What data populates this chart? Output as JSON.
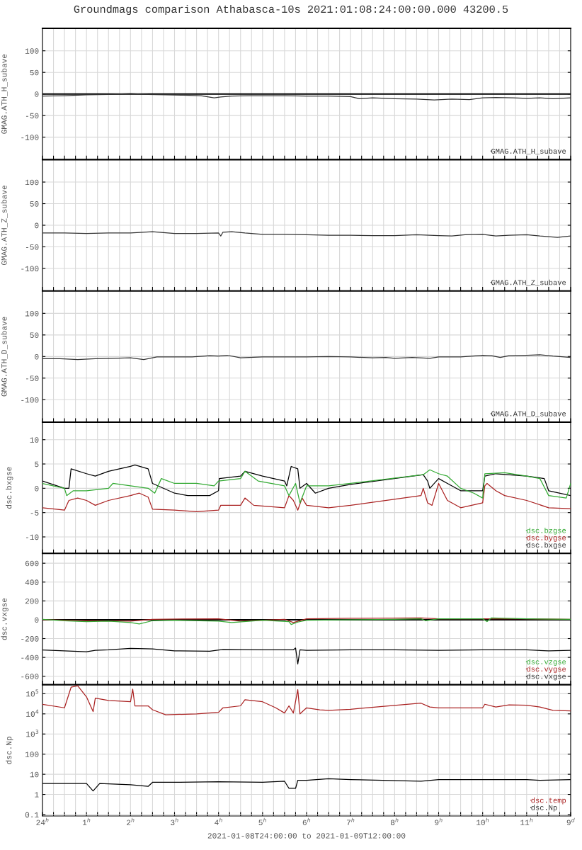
{
  "chart_data": [
    {
      "type": "line",
      "title": "Groundmags comparison Athabasca-10s 2021:01:08:24:00:00.000 43200.5",
      "ylabel": "GMAG.ATH_H_subave",
      "grid": true,
      "legend": "bottom right",
      "tick_labels": "y",
      "xlim": [
        "2021-01-09T00:00",
        "2021-01-09T12:00"
      ],
      "xticks": [
        "2021-01-09T00:00",
        "2021-01-09T00:15",
        "2021-01-09T00:30",
        "2021-01-09T00:45",
        "2021-01-09T01:00",
        "2021-01-09T01:15",
        "2021-01-09T01:30",
        "2021-01-09T01:45",
        "2021-01-09T02:00",
        "2021-01-09T02:15",
        "2021-01-09T02:30",
        "2021-01-09T02:45",
        "2021-01-09T03:00",
        "2021-01-09T03:15",
        "2021-01-09T03:30",
        "2021-01-09T03:45",
        "2021-01-09T04:00",
        "2021-01-09T04:15",
        "2021-01-09T04:30",
        "2021-01-09T04:45",
        "2021-01-09T05:00",
        "2021-01-09T05:15",
        "2021-01-09T05:30",
        "2021-01-09T05:45",
        "2021-01-09T06:00",
        "2021-01-09T06:15",
        "2021-01-09T06:30",
        "2021-01-09T06:45",
        "2021-01-09T07:00",
        "2021-01-09T07:15",
        "2021-01-09T07:30",
        "2021-01-09T07:45",
        "2021-01-09T08:00",
        "2021-01-09T08:15",
        "2021-01-09T08:30",
        "2021-01-09T08:45",
        "2021-01-09T09:00",
        "2021-01-09T09:15",
        "2021-01-09T09:30",
        "2021-01-09T09:45",
        "2021-01-09T10:00",
        "2021-01-09T10:15",
        "2021-01-09T10:30",
        "2021-01-09T10:45",
        "2021-01-09T11:00",
        "2021-01-09T11:15",
        "2021-01-09T11:30",
        "2021-01-09T11:45",
        "2021-01-09T12:00"
      ],
      "ylim": [
        -152,
        152
      ],
      "yticks": [
        -100,
        -50,
        0,
        50,
        100
      ],
      "ref_lines": [
        {
          "axis": "y",
          "value": 0,
          "color": "#000000"
        }
      ],
      "series": [
        {
          "name": "GMAG.ATH_H_subave",
          "color": "#333333",
          "x": [
            "2021-01-09T00:00",
            "2021-01-09T00:30",
            "2021-01-09T01:00",
            "2021-01-09T01:30",
            "2021-01-09T02:00",
            "2021-01-09T02:24",
            "2021-01-09T02:48",
            "2021-01-09T03:12",
            "2021-01-09T03:36",
            "2021-01-09T03:54",
            "2021-01-09T04:03",
            "2021-01-09T04:18",
            "2021-01-09T04:42",
            "2021-01-09T05:00",
            "2021-01-09T05:30",
            "2021-01-09T06:00",
            "2021-01-09T06:30",
            "2021-01-09T07:00",
            "2021-01-09T07:12",
            "2021-01-09T07:30",
            "2021-01-09T08:00",
            "2021-01-09T08:30",
            "2021-01-09T08:54",
            "2021-01-09T09:18",
            "2021-01-09T09:42",
            "2021-01-09T10:00",
            "2021-01-09T10:18",
            "2021-01-09T10:42",
            "2021-01-09T11:00",
            "2021-01-09T11:18",
            "2021-01-09T11:36",
            "2021-01-09T12:00"
          ],
          "values": [
            -5,
            -4,
            -2,
            -1,
            1,
            -1,
            -2,
            -3,
            -4,
            -9,
            -7,
            -5,
            -4,
            -4,
            -4,
            -5,
            -5,
            -6,
            -11,
            -9,
            -11,
            -12,
            -14,
            -12,
            -13,
            -9,
            -8,
            -9,
            -10,
            -9,
            -11,
            -9
          ]
        }
      ]
    },
    {
      "type": "line",
      "ylabel": "GMAG.ATH_Z_subave",
      "grid": true,
      "legend": "bottom right",
      "tick_labels": "y",
      "xlim": [
        "2021-01-09T00:00",
        "2021-01-09T12:00"
      ],
      "xticks": [
        "2021-01-09T00:00",
        "2021-01-09T00:15",
        "2021-01-09T00:30",
        "2021-01-09T00:45",
        "2021-01-09T01:00",
        "2021-01-09T01:15",
        "2021-01-09T01:30",
        "2021-01-09T01:45",
        "2021-01-09T02:00",
        "2021-01-09T02:15",
        "2021-01-09T02:30",
        "2021-01-09T02:45",
        "2021-01-09T03:00",
        "2021-01-09T03:15",
        "2021-01-09T03:30",
        "2021-01-09T03:45",
        "2021-01-09T04:00",
        "2021-01-09T04:15",
        "2021-01-09T04:30",
        "2021-01-09T04:45",
        "2021-01-09T05:00",
        "2021-01-09T05:15",
        "2021-01-09T05:30",
        "2021-01-09T05:45",
        "2021-01-09T06:00",
        "2021-01-09T06:15",
        "2021-01-09T06:30",
        "2021-01-09T06:45",
        "2021-01-09T07:00",
        "2021-01-09T07:15",
        "2021-01-09T07:30",
        "2021-01-09T07:45",
        "2021-01-09T08:00",
        "2021-01-09T08:15",
        "2021-01-09T08:30",
        "2021-01-09T08:45",
        "2021-01-09T09:00",
        "2021-01-09T09:15",
        "2021-01-09T09:30",
        "2021-01-09T09:45",
        "2021-01-09T10:00",
        "2021-01-09T10:15",
        "2021-01-09T10:30",
        "2021-01-09T10:45",
        "2021-01-09T11:00",
        "2021-01-09T11:15",
        "2021-01-09T11:30",
        "2021-01-09T11:45",
        "2021-01-09T12:00"
      ],
      "ylim": [
        -152,
        152
      ],
      "yticks": [
        -100,
        -50,
        0,
        50,
        100
      ],
      "series": [
        {
          "name": "GMAG.ATH_Z_subave",
          "color": "#333333",
          "x": [
            "2021-01-09T00:00",
            "2021-01-09T00:30",
            "2021-01-09T01:00",
            "2021-01-09T01:30",
            "2021-01-09T02:00",
            "2021-01-09T02:30",
            "2021-01-09T03:00",
            "2021-01-09T03:30",
            "2021-01-09T04:00",
            "2021-01-09T04:03",
            "2021-01-09T04:06",
            "2021-01-09T04:18",
            "2021-01-09T04:36",
            "2021-01-09T05:00",
            "2021-01-09T05:30",
            "2021-01-09T06:00",
            "2021-01-09T06:30",
            "2021-01-09T07:00",
            "2021-01-09T07:30",
            "2021-01-09T08:00",
            "2021-01-09T08:30",
            "2021-01-09T09:00",
            "2021-01-09T09:18",
            "2021-01-09T09:36",
            "2021-01-09T10:00",
            "2021-01-09T10:18",
            "2021-01-09T10:36",
            "2021-01-09T11:00",
            "2021-01-09T11:18",
            "2021-01-09T11:42",
            "2021-01-09T12:00"
          ],
          "values": [
            -18,
            -18,
            -19,
            -18,
            -18,
            -15,
            -19,
            -19,
            -18,
            -25,
            -16,
            -15,
            -18,
            -21,
            -21,
            -22,
            -23,
            -23,
            -24,
            -24,
            -22,
            -24,
            -25,
            -22,
            -21,
            -25,
            -23,
            -22,
            -25,
            -28,
            -25
          ]
        }
      ]
    },
    {
      "type": "line",
      "ylabel": "GMAG.ATH_D_subave",
      "grid": true,
      "legend": "bottom right",
      "tick_labels": "y",
      "xlim": [
        "2021-01-09T00:00",
        "2021-01-09T12:00"
      ],
      "xticks": [
        "2021-01-09T00:00",
        "2021-01-09T00:15",
        "2021-01-09T00:30",
        "2021-01-09T00:45",
        "2021-01-09T01:00",
        "2021-01-09T01:15",
        "2021-01-09T01:30",
        "2021-01-09T01:45",
        "2021-01-09T02:00",
        "2021-01-09T02:15",
        "2021-01-09T02:30",
        "2021-01-09T02:45",
        "2021-01-09T03:00",
        "2021-01-09T03:15",
        "2021-01-09T03:30",
        "2021-01-09T03:45",
        "2021-01-09T04:00",
        "2021-01-09T04:15",
        "2021-01-09T04:30",
        "2021-01-09T04:45",
        "2021-01-09T05:00",
        "2021-01-09T05:15",
        "2021-01-09T05:30",
        "2021-01-09T05:45",
        "2021-01-09T06:00",
        "2021-01-09T06:15",
        "2021-01-09T06:30",
        "2021-01-09T06:45",
        "2021-01-09T07:00",
        "2021-01-09T07:15",
        "2021-01-09T07:30",
        "2021-01-09T07:45",
        "2021-01-09T08:00",
        "2021-01-09T08:15",
        "2021-01-09T08:30",
        "2021-01-09T08:45",
        "2021-01-09T09:00",
        "2021-01-09T09:15",
        "2021-01-09T09:30",
        "2021-01-09T09:45",
        "2021-01-09T10:00",
        "2021-01-09T10:15",
        "2021-01-09T10:30",
        "2021-01-09T10:45",
        "2021-01-09T11:00",
        "2021-01-09T11:15",
        "2021-01-09T11:30",
        "2021-01-09T11:45",
        "2021-01-09T12:00"
      ],
      "ylim": [
        -152,
        152
      ],
      "yticks": [
        -100,
        -50,
        0,
        50,
        100
      ],
      "series": [
        {
          "name": "GMAG.ATH_D_subave",
          "color": "#333333",
          "x": [
            "2021-01-09T00:00",
            "2021-01-09T00:24",
            "2021-01-09T00:48",
            "2021-01-09T01:12",
            "2021-01-09T01:36",
            "2021-01-09T02:00",
            "2021-01-09T02:18",
            "2021-01-09T02:36",
            "2021-01-09T03:00",
            "2021-01-09T03:24",
            "2021-01-09T03:48",
            "2021-01-09T04:00",
            "2021-01-09T04:12",
            "2021-01-09T04:30",
            "2021-01-09T05:00",
            "2021-01-09T05:30",
            "2021-01-09T06:00",
            "2021-01-09T06:30",
            "2021-01-09T07:00",
            "2021-01-09T07:30",
            "2021-01-09T07:48",
            "2021-01-09T08:00",
            "2021-01-09T08:24",
            "2021-01-09T08:48",
            "2021-01-09T09:00",
            "2021-01-09T09:30",
            "2021-01-09T10:00",
            "2021-01-09T10:12",
            "2021-01-09T10:24",
            "2021-01-09T10:36",
            "2021-01-09T11:00",
            "2021-01-09T11:18",
            "2021-01-09T11:36",
            "2021-01-09T12:00"
          ],
          "values": [
            -5,
            -5,
            -7,
            -5,
            -4,
            -3,
            -7,
            -1,
            -1,
            -1,
            2,
            1,
            3,
            -3,
            -1,
            -1,
            -1,
            0,
            -1,
            -3,
            -2,
            -4,
            -2,
            -4,
            -1,
            -1,
            3,
            2,
            -2,
            2,
            3,
            4,
            1,
            -2
          ]
        }
      ]
    },
    {
      "type": "line",
      "ylabel": "dsc.bxgse",
      "grid": true,
      "legend": "bottom right",
      "tick_labels": "y",
      "xlim": [
        "2021-01-09T00:00",
        "2021-01-09T12:00"
      ],
      "xticks": [
        "2021-01-09T00:00",
        "2021-01-09T00:15",
        "2021-01-09T00:30",
        "2021-01-09T00:45",
        "2021-01-09T01:00",
        "2021-01-09T01:15",
        "2021-01-09T01:30",
        "2021-01-09T01:45",
        "2021-01-09T02:00",
        "2021-01-09T02:15",
        "2021-01-09T02:30",
        "2021-01-09T02:45",
        "2021-01-09T03:00",
        "2021-01-09T03:15",
        "2021-01-09T03:30",
        "2021-01-09T03:45",
        "2021-01-09T04:00",
        "2021-01-09T04:15",
        "2021-01-09T04:30",
        "2021-01-09T04:45",
        "2021-01-09T05:00",
        "2021-01-09T05:15",
        "2021-01-09T05:30",
        "2021-01-09T05:45",
        "2021-01-09T06:00",
        "2021-01-09T06:15",
        "2021-01-09T06:30",
        "2021-01-09T06:45",
        "2021-01-09T07:00",
        "2021-01-09T07:15",
        "2021-01-09T07:30",
        "2021-01-09T07:45",
        "2021-01-09T08:00",
        "2021-01-09T08:15",
        "2021-01-09T08:30",
        "2021-01-09T08:45",
        "2021-01-09T09:00",
        "2021-01-09T09:15",
        "2021-01-09T09:30",
        "2021-01-09T09:45",
        "2021-01-09T10:00",
        "2021-01-09T10:15",
        "2021-01-09T10:30",
        "2021-01-09T10:45",
        "2021-01-09T11:00",
        "2021-01-09T11:15",
        "2021-01-09T11:30",
        "2021-01-09T11:45",
        "2021-01-09T12:00"
      ],
      "ylim": [
        -13.4,
        13.6
      ],
      "yticks": [
        -10,
        -5,
        0,
        5,
        10
      ],
      "series": [
        {
          "name": "dsc.bzgse",
          "color": "#33aa33",
          "x": [
            "2021-01-09T00:00",
            "2021-01-09T00:30",
            "2021-01-09T00:33",
            "2021-01-09T00:42",
            "2021-01-09T01:00",
            "2021-01-09T01:30",
            "2021-01-09T01:36",
            "2021-01-09T02:00",
            "2021-01-09T02:24",
            "2021-01-09T02:33",
            "2021-01-09T02:42",
            "2021-01-09T03:00",
            "2021-01-09T03:30",
            "2021-01-09T03:54",
            "2021-01-09T04:00",
            "2021-01-09T04:30",
            "2021-01-09T04:36",
            "2021-01-09T04:54",
            "2021-01-09T05:30",
            "2021-01-09T05:36",
            "2021-01-09T05:45",
            "2021-01-09T05:51",
            "2021-01-09T06:00",
            "2021-01-09T06:30",
            "2021-01-09T07:00",
            "2021-01-09T08:39",
            "2021-01-09T08:48",
            "2021-01-09T09:00",
            "2021-01-09T09:12",
            "2021-01-09T09:30",
            "2021-01-09T09:48",
            "2021-01-09T10:00",
            "2021-01-09T10:03",
            "2021-01-09T10:30",
            "2021-01-09T11:00",
            "2021-01-09T11:18",
            "2021-01-09T11:30",
            "2021-01-09T11:54",
            "2021-01-09T12:00"
          ],
          "values": [
            1,
            0,
            -1.5,
            -0.5,
            -0.5,
            0,
            1,
            0.5,
            0,
            -1,
            2,
            1,
            1,
            0.5,
            1.5,
            2,
            3.5,
            1.5,
            0.5,
            -1.5,
            1,
            -3,
            0.5,
            0.5,
            1,
            2.8,
            3.8,
            3,
            2.5,
            0,
            -1,
            -2,
            3,
            3.2,
            2.5,
            2,
            -1.5,
            -2,
            1
          ]
        },
        {
          "name": "dsc.bygse",
          "color": "#aa2222",
          "x": [
            "2021-01-09T00:00",
            "2021-01-09T00:30",
            "2021-01-09T00:36",
            "2021-01-09T00:48",
            "2021-01-09T01:00",
            "2021-01-09T01:12",
            "2021-01-09T01:30",
            "2021-01-09T02:00",
            "2021-01-09T02:12",
            "2021-01-09T02:24",
            "2021-01-09T02:30",
            "2021-01-09T03:00",
            "2021-01-09T03:30",
            "2021-01-09T04:00",
            "2021-01-09T04:03",
            "2021-01-09T04:30",
            "2021-01-09T04:36",
            "2021-01-09T04:48",
            "2021-01-09T05:30",
            "2021-01-09T05:36",
            "2021-01-09T05:42",
            "2021-01-09T05:48",
            "2021-01-09T05:54",
            "2021-01-09T06:00",
            "2021-01-09T06:30",
            "2021-01-09T07:00",
            "2021-01-09T08:36",
            "2021-01-09T08:39",
            "2021-01-09T08:45",
            "2021-01-09T08:51",
            "2021-01-09T09:00",
            "2021-01-09T09:12",
            "2021-01-09T09:30",
            "2021-01-09T10:00",
            "2021-01-09T10:03",
            "2021-01-09T10:06",
            "2021-01-09T10:18",
            "2021-01-09T10:30",
            "2021-01-09T11:00",
            "2021-01-09T11:30",
            "2021-01-09T12:00"
          ],
          "values": [
            -4,
            -4.5,
            -2.5,
            -2,
            -2.5,
            -3.5,
            -2.5,
            -1.5,
            -1,
            -1.8,
            -4.3,
            -4.5,
            -4.8,
            -4.5,
            -3.5,
            -3.5,
            -2,
            -3.5,
            -4,
            -1.5,
            -2.5,
            -4.5,
            -2,
            -3.5,
            -4,
            -3.5,
            -1.5,
            0,
            -3,
            -3.5,
            1,
            -2.5,
            -4,
            -3,
            0.5,
            1,
            -0.5,
            -1.5,
            -2.5,
            -4,
            -4.2
          ]
        },
        {
          "name": "dsc.bxgse",
          "color": "#000000",
          "x": [
            "2021-01-09T00:00",
            "2021-01-09T00:30",
            "2021-01-09T00:36",
            "2021-01-09T00:39",
            "2021-01-09T01:00",
            "2021-01-09T01:12",
            "2021-01-09T01:30",
            "2021-01-09T02:00",
            "2021-01-09T02:06",
            "2021-01-09T02:24",
            "2021-01-09T02:30",
            "2021-01-09T03:00",
            "2021-01-09T03:18",
            "2021-01-09T03:48",
            "2021-01-09T04:00",
            "2021-01-09T04:01",
            "2021-01-09T04:30",
            "2021-01-09T04:36",
            "2021-01-09T05:00",
            "2021-01-09T05:30",
            "2021-01-09T05:33",
            "2021-01-09T05:39",
            "2021-01-09T05:48",
            "2021-01-09T05:51",
            "2021-01-09T06:00",
            "2021-01-09T06:12",
            "2021-01-09T06:30",
            "2021-01-09T07:00",
            "2021-01-09T08:39",
            "2021-01-09T08:45",
            "2021-01-09T08:48",
            "2021-01-09T09:00",
            "2021-01-09T09:12",
            "2021-01-09T09:30",
            "2021-01-09T10:00",
            "2021-01-09T10:03",
            "2021-01-09T10:18",
            "2021-01-09T11:00",
            "2021-01-09T11:24",
            "2021-01-09T11:30",
            "2021-01-09T12:00"
          ],
          "values": [
            1.5,
            0,
            0,
            4,
            3,
            2.5,
            3.5,
            4.5,
            4.8,
            4,
            1,
            -1,
            -1.5,
            -1.5,
            -0.5,
            2,
            2.5,
            3.5,
            2.5,
            1.5,
            0.5,
            4.5,
            4,
            0,
            1,
            -1,
            0,
            0.8,
            2.8,
            1.5,
            0,
            2,
            1,
            -0.5,
            -0.5,
            2.5,
            3,
            2.5,
            2,
            -0.5,
            -1.5
          ]
        }
      ]
    },
    {
      "type": "line",
      "ylabel": "dsc.vxgse",
      "grid": true,
      "legend": "bottom right",
      "tick_labels": "y",
      "xlim": [
        "2021-01-09T00:00",
        "2021-01-09T12:00"
      ],
      "xticks": [
        "2021-01-09T00:00",
        "2021-01-09T00:15",
        "2021-01-09T00:30",
        "2021-01-09T00:45",
        "2021-01-09T01:00",
        "2021-01-09T01:15",
        "2021-01-09T01:30",
        "2021-01-09T01:45",
        "2021-01-09T02:00",
        "2021-01-09T02:15",
        "2021-01-09T02:30",
        "2021-01-09T02:45",
        "2021-01-09T03:00",
        "2021-01-09T03:15",
        "2021-01-09T03:30",
        "2021-01-09T03:45",
        "2021-01-09T04:00",
        "2021-01-09T04:15",
        "2021-01-09T04:30",
        "2021-01-09T04:45",
        "2021-01-09T05:00",
        "2021-01-09T05:15",
        "2021-01-09T05:30",
        "2021-01-09T05:45",
        "2021-01-09T06:00",
        "2021-01-09T06:15",
        "2021-01-09T06:30",
        "2021-01-09T06:45",
        "2021-01-09T07:00",
        "2021-01-09T07:15",
        "2021-01-09T07:30",
        "2021-01-09T07:45",
        "2021-01-09T08:00",
        "2021-01-09T08:15",
        "2021-01-09T08:30",
        "2021-01-09T08:45",
        "2021-01-09T09:00",
        "2021-01-09T09:15",
        "2021-01-09T09:30",
        "2021-01-09T09:45",
        "2021-01-09T10:00",
        "2021-01-09T10:15",
        "2021-01-09T10:30",
        "2021-01-09T10:45",
        "2021-01-09T11:00",
        "2021-01-09T11:15",
        "2021-01-09T11:30",
        "2021-01-09T11:45",
        "2021-01-09T12:00"
      ],
      "ylim": [
        -690,
        704
      ],
      "yticks": [
        -600,
        -400,
        -200,
        0,
        200,
        400,
        600
      ],
      "ref_lines": [
        {
          "axis": "y",
          "value": 0,
          "color": "#000000"
        }
      ],
      "series": [
        {
          "name": "dsc.vzgse",
          "color": "#33aa33",
          "x": [
            "2021-01-09T00:00",
            "2021-01-09T00:30",
            "2021-01-09T01:00",
            "2021-01-09T01:30",
            "2021-01-09T02:00",
            "2021-01-09T02:12",
            "2021-01-09T02:30",
            "2021-01-09T03:00",
            "2021-01-09T04:00",
            "2021-01-09T04:18",
            "2021-01-09T05:00",
            "2021-01-09T05:36",
            "2021-01-09T05:39",
            "2021-01-09T05:48",
            "2021-01-09T06:00",
            "2021-01-09T08:00",
            "2021-01-09T08:36",
            "2021-01-09T08:42",
            "2021-01-09T09:00",
            "2021-01-09T10:00",
            "2021-01-09T10:06",
            "2021-01-09T10:12",
            "2021-01-09T11:00",
            "2021-01-09T12:00"
          ],
          "values": [
            5,
            -10,
            -20,
            -15,
            -30,
            -45,
            -10,
            -5,
            -15,
            -30,
            -5,
            -20,
            -50,
            -25,
            -5,
            5,
            10,
            -10,
            10,
            10,
            -20,
            20,
            10,
            5
          ]
        },
        {
          "name": "dsc.vygse",
          "color": "#aa2222",
          "x": [
            "2021-01-09T00:00",
            "2021-01-09T01:00",
            "2021-01-09T02:00",
            "2021-01-09T02:30",
            "2021-01-09T04:00",
            "2021-01-09T04:30",
            "2021-01-09T05:30",
            "2021-01-09T05:42",
            "2021-01-09T06:00",
            "2021-01-09T07:00",
            "2021-01-09T08:36",
            "2021-01-09T09:00",
            "2021-01-09T10:00",
            "2021-01-09T11:00",
            "2021-01-09T12:00"
          ],
          "values": [
            0,
            -10,
            -15,
            5,
            10,
            -15,
            5,
            -30,
            10,
            15,
            20,
            10,
            10,
            10,
            5
          ]
        },
        {
          "name": "dsc.vxgse",
          "color": "#000000",
          "x": [
            "2021-01-09T00:00",
            "2021-01-09T00:30",
            "2021-01-09T01:00",
            "2021-01-09T01:12",
            "2021-01-09T01:30",
            "2021-01-09T02:00",
            "2021-01-09T02:30",
            "2021-01-09T03:00",
            "2021-01-09T03:48",
            "2021-01-09T04:06",
            "2021-01-09T05:00",
            "2021-01-09T05:42",
            "2021-01-09T05:45",
            "2021-01-09T05:48",
            "2021-01-09T05:51",
            "2021-01-09T06:00",
            "2021-01-09T07:00",
            "2021-01-09T08:00",
            "2021-01-09T09:00",
            "2021-01-09T10:00",
            "2021-01-09T11:00",
            "2021-01-09T11:30",
            "2021-01-09T12:00"
          ],
          "values": [
            -322,
            -330,
            -340,
            -325,
            -320,
            -305,
            -310,
            -330,
            -335,
            -315,
            -320,
            -320,
            -300,
            -470,
            -320,
            -325,
            -320,
            -320,
            -325,
            -320,
            -320,
            -330,
            -325
          ]
        }
      ]
    },
    {
      "type": "line",
      "ylabel": "dsc.Np",
      "xlabel": "2021-01-08T24:00:00 to 2021-01-09T12:00:00",
      "grid": true,
      "legend": "bottom right",
      "log": "y",
      "xlim": [
        "2021-01-09T00:00",
        "2021-01-09T12:00"
      ],
      "xticks": [
        {
          "value": "2021-01-09T00:00",
          "label": "24$^{h}$"
        },
        {
          "value": "2021-01-09T00:15",
          "label": null
        },
        {
          "value": "2021-01-09T00:30",
          "label": null
        },
        {
          "value": "2021-01-09T00:45",
          "label": null
        },
        {
          "value": "2021-01-09T01:00",
          "label": "1$^{h}$"
        },
        {
          "value": "2021-01-09T01:15",
          "label": null
        },
        {
          "value": "2021-01-09T01:30",
          "label": null
        },
        {
          "value": "2021-01-09T01:45",
          "label": null
        },
        {
          "value": "2021-01-09T02:00",
          "label": "2$^{h}$"
        },
        {
          "value": "2021-01-09T02:15",
          "label": null
        },
        {
          "value": "2021-01-09T02:30",
          "label": null
        },
        {
          "value": "2021-01-09T02:45",
          "label": null
        },
        {
          "value": "2021-01-09T03:00",
          "label": "3$^{h}$"
        },
        {
          "value": "2021-01-09T03:15",
          "label": null
        },
        {
          "value": "2021-01-09T03:30",
          "label": null
        },
        {
          "value": "2021-01-09T03:45",
          "label": null
        },
        {
          "value": "2021-01-09T04:00",
          "label": "4$^{h}$"
        },
        {
          "value": "2021-01-09T04:15",
          "label": null
        },
        {
          "value": "2021-01-09T04:30",
          "label": null
        },
        {
          "value": "2021-01-09T04:45",
          "label": null
        },
        {
          "value": "2021-01-09T05:00",
          "label": "5$^{h}$"
        },
        {
          "value": "2021-01-09T05:15",
          "label": null
        },
        {
          "value": "2021-01-09T05:30",
          "label": null
        },
        {
          "value": "2021-01-09T05:45",
          "label": null
        },
        {
          "value": "2021-01-09T06:00",
          "label": "6$^{h}$"
        },
        {
          "value": "2021-01-09T06:15",
          "label": null
        },
        {
          "value": "2021-01-09T06:30",
          "label": null
        },
        {
          "value": "2021-01-09T06:45",
          "label": null
        },
        {
          "value": "2021-01-09T07:00",
          "label": "7$^{h}$"
        },
        {
          "value": "2021-01-09T07:15",
          "label": null
        },
        {
          "value": "2021-01-09T07:30",
          "label": null
        },
        {
          "value": "2021-01-09T07:45",
          "label": null
        },
        {
          "value": "2021-01-09T08:00",
          "label": "8$^{h}$"
        },
        {
          "value": "2021-01-09T08:15",
          "label": null
        },
        {
          "value": "2021-01-09T08:30",
          "label": null
        },
        {
          "value": "2021-01-09T08:45",
          "label": null
        },
        {
          "value": "2021-01-09T09:00",
          "label": "9$^{h}$"
        },
        {
          "value": "2021-01-09T09:15",
          "label": null
        },
        {
          "value": "2021-01-09T09:30",
          "label": null
        },
        {
          "value": "2021-01-09T09:45",
          "label": null
        },
        {
          "value": "2021-01-09T10:00",
          "label": "10$^{h}$"
        },
        {
          "value": "2021-01-09T10:15",
          "label": null
        },
        {
          "value": "2021-01-09T10:30",
          "label": null
        },
        {
          "value": "2021-01-09T10:45",
          "label": null
        },
        {
          "value": "2021-01-09T11:00",
          "label": "11$^{h}$"
        },
        {
          "value": "2021-01-09T11:15",
          "label": null
        },
        {
          "value": "2021-01-09T11:30",
          "label": null
        },
        {
          "value": "2021-01-09T11:45",
          "label": null
        },
        {
          "value": "2021-01-09T12:00",
          "label": "9$^{d}$"
        }
      ],
      "ylim": [
        0.085,
        280000
      ],
      "yticks": [
        0.1,
        1,
        10,
        100,
        {
          "value": 1000,
          "label": "10$^{3}$"
        },
        {
          "value": 10000,
          "label": "10$^{4}$"
        },
        {
          "value": 100000,
          "label": "10$^{5}$"
        }
      ],
      "series": [
        {
          "name": "dsc.temp",
          "color": "#aa2222",
          "x": [
            "2021-01-09T00:00",
            "2021-01-09T00:30",
            "2021-01-09T00:39",
            "2021-01-09T00:48",
            "2021-01-09T01:00",
            "2021-01-09T01:09",
            "2021-01-09T01:12",
            "2021-01-09T01:30",
            "2021-01-09T02:00",
            "2021-01-09T02:03",
            "2021-01-09T02:06",
            "2021-01-09T02:24",
            "2021-01-09T02:30",
            "2021-01-09T02:48",
            "2021-01-09T03:30",
            "2021-01-09T04:00",
            "2021-01-09T04:06",
            "2021-01-09T04:30",
            "2021-01-09T04:36",
            "2021-01-09T05:00",
            "2021-01-09T05:18",
            "2021-01-09T05:30",
            "2021-01-09T05:36",
            "2021-01-09T05:42",
            "2021-01-09T05:48",
            "2021-01-09T05:51",
            "2021-01-09T06:00",
            "2021-01-09T06:18",
            "2021-01-09T06:30",
            "2021-01-09T07:00",
            "2021-01-09T08:36",
            "2021-01-09T08:48",
            "2021-01-09T09:00",
            "2021-01-09T10:00",
            "2021-01-09T10:03",
            "2021-01-09T10:18",
            "2021-01-09T10:36",
            "2021-01-09T11:00",
            "2021-01-09T11:18",
            "2021-01-09T11:36",
            "2021-01-09T12:00"
          ],
          "values": [
            30000,
            20000,
            210000,
            250000,
            70000,
            13000,
            60000,
            46000,
            40000,
            170000,
            25000,
            25000,
            16000,
            9000,
            10000,
            12000,
            20000,
            25000,
            50000,
            40000,
            20000,
            11000,
            25000,
            11000,
            160000,
            10000,
            20000,
            16000,
            15000,
            17000,
            34000,
            22000,
            20000,
            20000,
            30000,
            22000,
            28000,
            27000,
            22000,
            15000,
            14000
          ]
        },
        {
          "name": "dsc.Np",
          "color": "#000000",
          "x": [
            "2021-01-09T00:00",
            "2021-01-09T00:30",
            "2021-01-09T01:00",
            "2021-01-09T01:09",
            "2021-01-09T01:18",
            "2021-01-09T02:00",
            "2021-01-09T02:24",
            "2021-01-09T02:30",
            "2021-01-09T03:00",
            "2021-01-09T04:00",
            "2021-01-09T05:00",
            "2021-01-09T05:30",
            "2021-01-09T05:36",
            "2021-01-09T05:45",
            "2021-01-09T05:48",
            "2021-01-09T06:00",
            "2021-01-09T06:30",
            "2021-01-09T07:00",
            "2021-01-09T08:36",
            "2021-01-09T09:00",
            "2021-01-09T10:00",
            "2021-01-09T11:00",
            "2021-01-09T11:18",
            "2021-01-09T12:00"
          ],
          "values": [
            3.5,
            3.5,
            3.5,
            1.5,
            3.5,
            3,
            2.5,
            4,
            4,
            4.3,
            4,
            4.5,
            2,
            2,
            5,
            5,
            6,
            5.5,
            4.5,
            5.5,
            5.5,
            5.5,
            5,
            5.5
          ]
        }
      ]
    }
  ]
}
